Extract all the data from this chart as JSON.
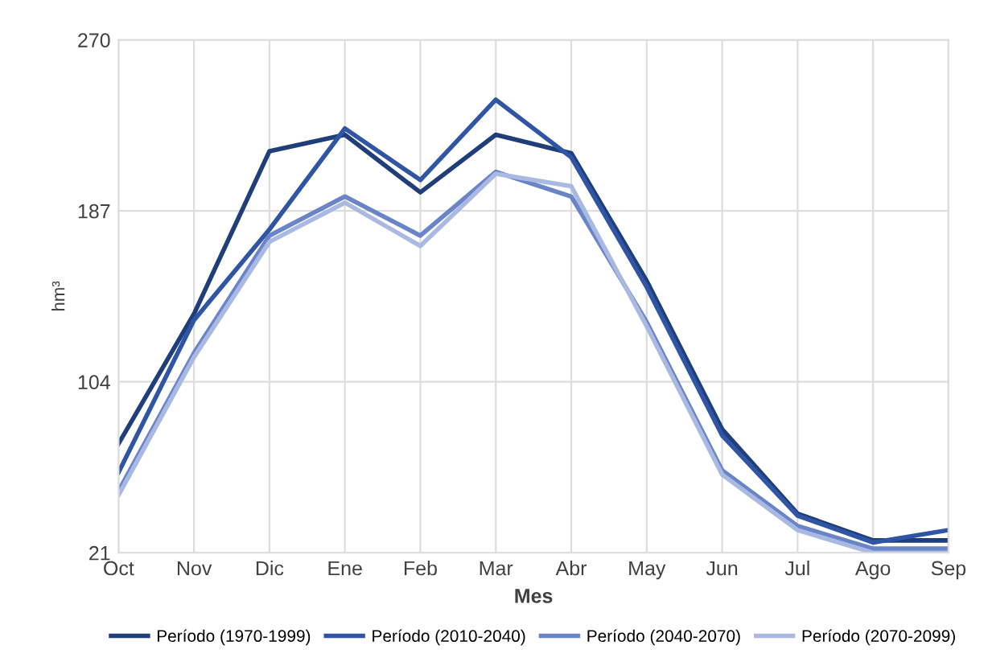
{
  "chart_data": {
    "type": "line",
    "xlabel": "Mes",
    "ylabel": "hm³",
    "categories": [
      "Oct",
      "Nov",
      "Dic",
      "Ene",
      "Feb",
      "Mar",
      "Abr",
      "May",
      "Jun",
      "Jul",
      "Ago",
      "Sep"
    ],
    "series": [
      {
        "name": "Período (1970-1999)",
        "color": "#203f7a",
        "values": [
          74,
          137,
          216,
          224,
          196,
          224,
          215,
          153,
          81,
          40,
          27,
          27
        ]
      },
      {
        "name": "Período (2010-2040)",
        "color": "#2f55a4",
        "values": [
          60,
          134,
          178,
          227,
          202,
          241,
          213,
          150,
          78,
          39,
          26,
          32
        ]
      },
      {
        "name": "Período (2040-2070)",
        "color": "#6a84c8",
        "values": [
          51,
          118,
          175,
          194,
          175,
          206,
          194,
          133,
          61,
          34,
          23,
          23
        ]
      },
      {
        "name": "Período (2070-2099)",
        "color": "#aab9e2",
        "values": [
          49,
          116,
          172,
          191,
          170,
          205,
          199,
          131,
          59,
          32,
          21,
          21
        ]
      }
    ],
    "ylim": [
      21,
      270
    ],
    "yticks": [
      21,
      104,
      187,
      270
    ],
    "grid": true,
    "legend": "bottom",
    "marker": "none",
    "line_style": "solid"
  }
}
